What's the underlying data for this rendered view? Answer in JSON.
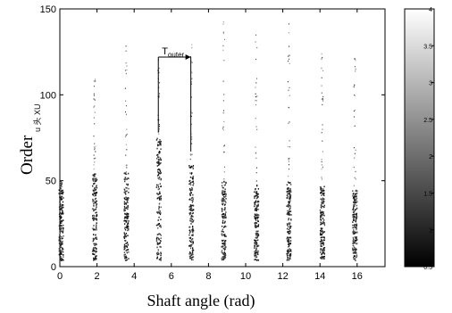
{
  "chart_data": {
    "type": "scatter",
    "xlabel": "Shaft angle (rad)",
    "ylabel": "Order",
    "ylabel_sub": "u 头 XU",
    "xlim": [
      0,
      17.5
    ],
    "ylim": [
      0,
      150
    ],
    "xticks": [
      0,
      2,
      4,
      6,
      8,
      10,
      12,
      14,
      16
    ],
    "yticks": [
      0,
      50,
      100,
      150
    ],
    "grid": false,
    "colorbar": {
      "range": [
        0.5,
        4
      ],
      "ticks": [
        "4",
        "3.5",
        "3",
        "2.5",
        "2",
        "1.5",
        "1",
        "0.5"
      ],
      "colormap": "gray"
    },
    "stripes": [
      {
        "x": 0.05,
        "dense_max": 45,
        "sparse_max": 50
      },
      {
        "x": 1.85,
        "dense_max": 55,
        "sparse_max": 110
      },
      {
        "x": 3.55,
        "dense_max": 55,
        "sparse_max": 133
      },
      {
        "x": 5.3,
        "dense_max": 75,
        "sparse_max": 122
      },
      {
        "x": 7.05,
        "dense_max": 60,
        "sparse_max": 132
      },
      {
        "x": 8.8,
        "dense_max": 50,
        "sparse_max": 143
      },
      {
        "x": 10.55,
        "dense_max": 48,
        "sparse_max": 140
      },
      {
        "x": 12.3,
        "dense_max": 50,
        "sparse_max": 142
      },
      {
        "x": 14.1,
        "dense_max": 48,
        "sparse_max": 130
      },
      {
        "x": 15.85,
        "dense_max": 45,
        "sparse_max": 128
      }
    ],
    "annotation": {
      "label": "T",
      "sub": "outer",
      "x_start": 5.3,
      "x_end": 7.05,
      "y": 122
    }
  }
}
